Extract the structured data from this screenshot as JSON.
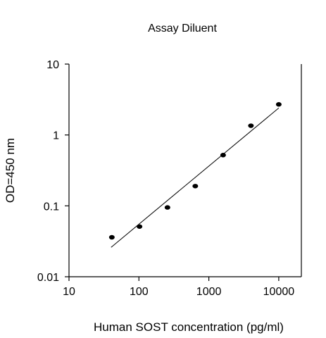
{
  "chart_data": {
    "type": "scatter",
    "title": "Assay Diluent",
    "xlabel": "Human SOST concentration (pg/ml)",
    "ylabel": "OD=450 nm",
    "xscale": "log",
    "yscale": "log",
    "xlim": [
      10,
      20000
    ],
    "ylim": [
      0.01,
      10
    ],
    "xticks": [
      10,
      100,
      1000,
      10000
    ],
    "xtick_labels": [
      "10",
      "100",
      "1000",
      "10000"
    ],
    "yticks": [
      0.01,
      0.1,
      1,
      10
    ],
    "ytick_labels": [
      "0.01",
      "0.1",
      "1",
      "10"
    ],
    "grid": false,
    "legend": "none",
    "series": [
      {
        "points": [
          {
            "x": 41,
            "y": 0.036
          },
          {
            "x": 102,
            "y": 0.051
          },
          {
            "x": 256,
            "y": 0.095
          },
          {
            "x": 640,
            "y": 0.19
          },
          {
            "x": 1600,
            "y": 0.52
          },
          {
            "x": 4000,
            "y": 1.35
          },
          {
            "x": 10000,
            "y": 2.7
          }
        ],
        "marker_color": "#000000"
      }
    ],
    "trendline": {
      "x": [
        40,
        10000
      ],
      "y": [
        0.026,
        2.4
      ],
      "color": "#000000"
    }
  }
}
